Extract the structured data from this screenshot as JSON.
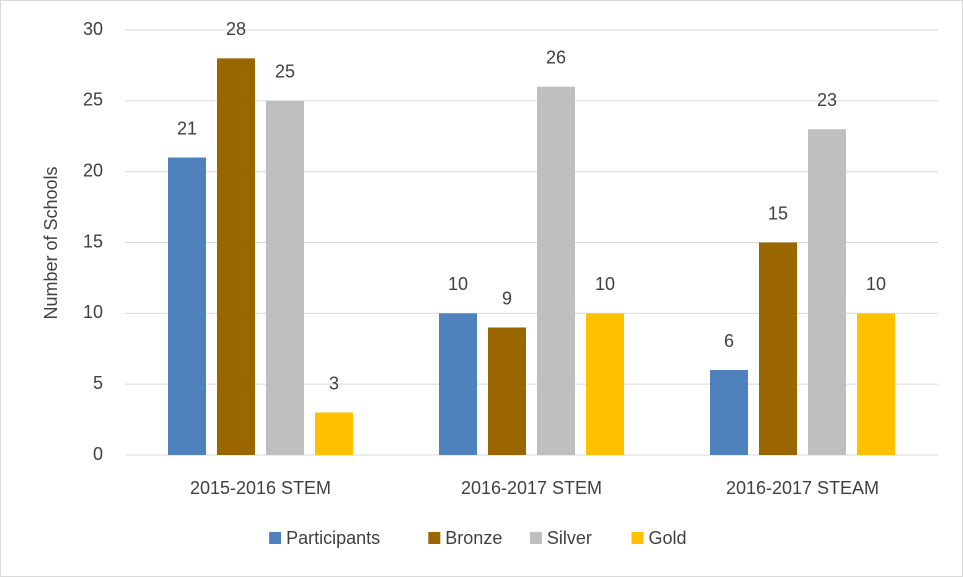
{
  "chart_data": {
    "type": "bar",
    "y_label": "Number of Schools",
    "categories": [
      "2015-2016 STEM",
      "2016-2017 STEM",
      "2016-2017 STEAM"
    ],
    "series": [
      {
        "name": "Participants",
        "color": "#4f81bd",
        "values": [
          21,
          10,
          6
        ]
      },
      {
        "name": "Bronze",
        "color": "#996600",
        "values": [
          28,
          9,
          15
        ]
      },
      {
        "name": "Silver",
        "color": "#bfbfbf",
        "values": [
          25,
          26,
          23
        ]
      },
      {
        "name": "Gold",
        "color": "#ffc000",
        "values": [
          3,
          10,
          10
        ]
      }
    ],
    "ylim": [
      0,
      30
    ],
    "yticks": [
      0,
      5,
      10,
      15,
      20,
      25,
      30
    ],
    "grid": true,
    "legend": "bottom"
  }
}
